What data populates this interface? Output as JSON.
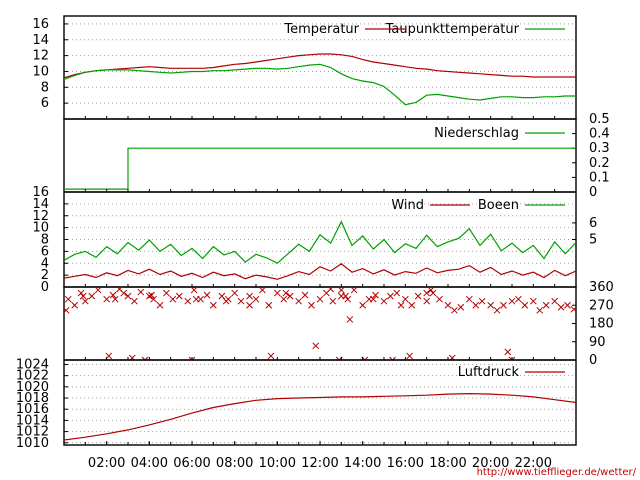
{
  "colors": {
    "red": "#b00000",
    "green": "#00a000",
    "grid": "#a0a0a0",
    "axis": "#000000",
    "url": "#c00000"
  },
  "footer_url": "http://www.tiefflieger.de/wetter/",
  "x_ticks": [
    "02:00",
    "04:00",
    "06:00",
    "08:00",
    "10:00",
    "12:00",
    "14:00",
    "16:00",
    "18:00",
    "20:00",
    "22:00"
  ],
  "chart_data": [
    {
      "id": "temperature",
      "type": "line",
      "x_unit": "hour",
      "xlim": [
        0,
        24
      ],
      "ylim": [
        4,
        17
      ],
      "y_ticks": [
        6,
        8,
        10,
        12,
        14,
        16
      ],
      "legend_position": "top-right",
      "grid": true,
      "series": [
        {
          "name": "Temperatur",
          "color": "#b00000",
          "x": [
            0,
            0.5,
            1,
            1.5,
            2,
            2.5,
            3,
            3.5,
            4,
            4.5,
            5,
            5.5,
            6,
            6.5,
            7,
            7.5,
            8,
            8.5,
            9,
            9.5,
            10,
            10.5,
            11,
            11.5,
            12,
            12.5,
            13,
            13.5,
            14,
            14.5,
            15,
            15.5,
            16,
            16.5,
            17,
            17.5,
            18,
            18.5,
            19,
            19.5,
            20,
            20.5,
            21,
            21.5,
            22,
            22.5,
            23,
            23.5,
            24
          ],
          "values": [
            9.2,
            9.6,
            9.9,
            10.1,
            10.2,
            10.3,
            10.4,
            10.5,
            10.6,
            10.5,
            10.4,
            10.4,
            10.4,
            10.4,
            10.5,
            10.7,
            10.9,
            11.0,
            11.2,
            11.4,
            11.6,
            11.8,
            12.0,
            12.1,
            12.2,
            12.2,
            12.1,
            11.9,
            11.5,
            11.2,
            11.0,
            10.8,
            10.6,
            10.4,
            10.3,
            10.1,
            10.0,
            9.9,
            9.8,
            9.7,
            9.6,
            9.5,
            9.4,
            9.4,
            9.3,
            9.3,
            9.3,
            9.3,
            9.3
          ]
        },
        {
          "name": "Taupunkttemperatur",
          "color": "#00a000",
          "x": [
            0,
            0.5,
            1,
            1.5,
            2,
            2.5,
            3,
            3.5,
            4,
            4.5,
            5,
            5.5,
            6,
            6.5,
            7,
            7.5,
            8,
            8.5,
            9,
            9.5,
            10,
            10.5,
            11,
            11.5,
            12,
            12.5,
            13,
            13.5,
            14,
            14.5,
            15,
            15.5,
            16,
            16.5,
            17,
            17.5,
            18,
            18.5,
            19,
            19.5,
            20,
            20.5,
            21,
            21.5,
            22,
            22.5,
            23,
            23.5,
            24
          ],
          "values": [
            9.0,
            9.5,
            9.9,
            10.1,
            10.2,
            10.2,
            10.2,
            10.1,
            10.0,
            9.9,
            9.8,
            9.9,
            10.0,
            10.0,
            10.1,
            10.1,
            10.2,
            10.3,
            10.4,
            10.4,
            10.3,
            10.4,
            10.6,
            10.8,
            10.9,
            10.5,
            9.7,
            9.1,
            8.8,
            8.6,
            8.1,
            7.0,
            5.8,
            6.1,
            7.0,
            7.1,
            6.9,
            6.7,
            6.5,
            6.4,
            6.6,
            6.8,
            6.8,
            6.7,
            6.7,
            6.8,
            6.8,
            6.9,
            6.9
          ]
        }
      ]
    },
    {
      "id": "precipitation",
      "type": "line",
      "x_unit": "hour",
      "xlim": [
        0,
        24
      ],
      "ylim": [
        0,
        0.5
      ],
      "y_ticks_right": [
        0,
        0.1,
        0.2,
        0.3,
        0.4,
        0.5
      ],
      "legend_position": "top-right",
      "grid": false,
      "series": [
        {
          "name": "Niederschlag",
          "color": "#00a000",
          "x": [
            0,
            3.0,
            3.0,
            24
          ],
          "values": [
            0.02,
            0.02,
            0.3,
            0.3
          ]
        }
      ]
    },
    {
      "id": "wind",
      "type": "line",
      "x_unit": "hour",
      "xlim": [
        0,
        24
      ],
      "ylim": [
        0,
        16
      ],
      "y_ticks": [
        0,
        2,
        4,
        6,
        8,
        10,
        12,
        14,
        16
      ],
      "y_ticks_right": [
        5,
        6
      ],
      "legend_position": "top-right",
      "grid": true,
      "series": [
        {
          "name": "Wind",
          "color": "#b00000",
          "x": [
            0,
            0.5,
            1,
            1.5,
            2,
            2.5,
            3,
            3.5,
            4,
            4.5,
            5,
            5.5,
            6,
            6.5,
            7,
            7.5,
            8,
            8.5,
            9,
            9.5,
            10,
            10.5,
            11,
            11.5,
            12,
            12.5,
            13,
            13.5,
            14,
            14.5,
            15,
            15.5,
            16,
            16.5,
            17,
            17.5,
            18,
            18.5,
            19,
            19.5,
            20,
            20.5,
            21,
            21.5,
            22,
            22.5,
            23,
            23.5,
            24
          ],
          "values": [
            1.5,
            1.8,
            2.1,
            1.6,
            2.4,
            1.9,
            2.8,
            2.2,
            3.0,
            2.1,
            2.7,
            1.8,
            2.3,
            1.6,
            2.5,
            1.9,
            2.2,
            1.4,
            2.0,
            1.7,
            1.3,
            1.9,
            2.6,
            2.1,
            3.4,
            2.7,
            3.9,
            2.5,
            3.1,
            2.2,
            2.9,
            2.0,
            2.6,
            2.3,
            3.2,
            2.4,
            2.8,
            3.0,
            3.6,
            2.5,
            3.3,
            2.1,
            2.7,
            2.0,
            2.5,
            1.6,
            2.8,
            1.9,
            2.7
          ]
        },
        {
          "name": "Boeen",
          "color": "#00a000",
          "x": [
            0,
            0.5,
            1,
            1.5,
            2,
            2.5,
            3,
            3.5,
            4,
            4.5,
            5,
            5.5,
            6,
            6.5,
            7,
            7.5,
            8,
            8.5,
            9,
            9.5,
            10,
            10.5,
            11,
            11.5,
            12,
            12.5,
            13,
            13.5,
            14,
            14.5,
            15,
            15.5,
            16,
            16.5,
            17,
            17.5,
            18,
            18.5,
            19,
            19.5,
            20,
            20.5,
            21,
            21.5,
            22,
            22.5,
            23,
            23.5,
            24
          ],
          "values": [
            4.5,
            5.5,
            6.0,
            5.0,
            6.8,
            5.6,
            7.5,
            6.2,
            7.9,
            6.0,
            7.2,
            5.3,
            6.5,
            4.8,
            6.8,
            5.4,
            6.0,
            4.2,
            5.5,
            4.9,
            4.0,
            5.6,
            7.2,
            6.0,
            8.8,
            7.4,
            11.0,
            7.0,
            8.6,
            6.4,
            8.0,
            5.8,
            7.3,
            6.5,
            8.7,
            6.8,
            7.6,
            8.2,
            9.8,
            7.0,
            8.9,
            6.1,
            7.4,
            5.8,
            7.0,
            4.8,
            7.6,
            5.6,
            7.5
          ]
        }
      ]
    },
    {
      "id": "wind_direction",
      "type": "scatter",
      "x_unit": "hour",
      "xlim": [
        0,
        24
      ],
      "ylim": [
        0,
        360
      ],
      "y_ticks_right": [
        0,
        90,
        180,
        270,
        360
      ],
      "grid": false,
      "series": [
        {
          "color": "#b00000",
          "x": [
            0.2,
            0.5,
            0.8,
            1.0,
            1.3,
            1.6,
            2.0,
            2.3,
            2.6,
            3.0,
            3.3,
            3.6,
            4.0,
            4.2,
            4.5,
            4.8,
            5.1,
            5.4,
            5.8,
            6.1,
            6.4,
            6.7,
            7.0,
            7.4,
            7.7,
            8.0,
            8.3,
            8.7,
            9.0,
            9.3,
            9.6,
            10.0,
            10.3,
            10.6,
            11.0,
            11.3,
            11.6,
            12.0,
            12.3,
            12.6,
            13.0,
            13.3,
            13.6,
            14.0,
            14.3,
            14.6,
            15.0,
            15.3,
            15.6,
            16.0,
            16.3,
            16.6,
            17.0,
            17.3,
            17.6,
            18.0,
            18.3,
            18.6,
            19.0,
            19.3,
            19.6,
            20.0,
            20.3,
            20.6,
            21.0,
            21.3,
            21.6,
            22.0,
            22.3,
            22.6,
            23.0,
            23.3,
            23.6,
            23.9,
            0.1,
            0.9,
            2.4,
            2.8,
            4.1,
            6.2,
            7.6,
            8.7,
            10.4,
            12.5,
            13.0,
            13.2,
            14.5,
            15.8,
            17.0,
            17.2,
            3.8,
            12.9,
            14.1,
            15.4,
            21.0,
            2.1,
            3.2,
            6.0,
            9.7,
            11.8,
            13.4,
            16.2,
            18.2,
            20.8
          ],
          "values": [
            300,
            270,
            330,
            290,
            315,
            345,
            300,
            320,
            350,
            315,
            290,
            335,
            315,
            300,
            270,
            330,
            300,
            315,
            290,
            345,
            300,
            320,
            270,
            315,
            300,
            330,
            290,
            315,
            300,
            345,
            270,
            330,
            300,
            315,
            290,
            320,
            270,
            300,
            330,
            290,
            315,
            300,
            345,
            270,
            300,
            320,
            290,
            315,
            330,
            300,
            270,
            315,
            290,
            330,
            300,
            270,
            245,
            260,
            300,
            270,
            290,
            270,
            245,
            270,
            290,
            300,
            270,
            290,
            245,
            270,
            290,
            260,
            270,
            250,
            245,
            315,
            300,
            330,
            320,
            300,
            290,
            270,
            330,
            350,
            345,
            315,
            300,
            270,
            330,
            345,
            0,
            0,
            0,
            0,
            0,
            20,
            10,
            0,
            20,
            70,
            200,
            20,
            10,
            40
          ]
        }
      ]
    },
    {
      "id": "pressure",
      "type": "line",
      "x_unit": "hour",
      "xlim": [
        0,
        24
      ],
      "ylim": [
        1009.6,
        1024.8
      ],
      "y_ticks": [
        1010,
        1012,
        1014,
        1016,
        1018,
        1020,
        1022,
        1024
      ],
      "legend_position": "top-right",
      "grid": true,
      "series": [
        {
          "name": "Luftdruck",
          "color": "#b00000",
          "x": [
            0,
            1,
            2,
            3,
            4,
            5,
            6,
            7,
            8,
            9,
            10,
            11,
            12,
            13,
            14,
            15,
            16,
            17,
            18,
            19,
            20,
            21,
            22,
            23,
            24
          ],
          "values": [
            1010.5,
            1011.0,
            1011.6,
            1012.3,
            1013.2,
            1014.2,
            1015.3,
            1016.3,
            1017.0,
            1017.6,
            1017.9,
            1018.0,
            1018.1,
            1018.2,
            1018.2,
            1018.3,
            1018.4,
            1018.5,
            1018.7,
            1018.8,
            1018.7,
            1018.5,
            1018.2,
            1017.7,
            1017.2
          ]
        }
      ]
    }
  ]
}
